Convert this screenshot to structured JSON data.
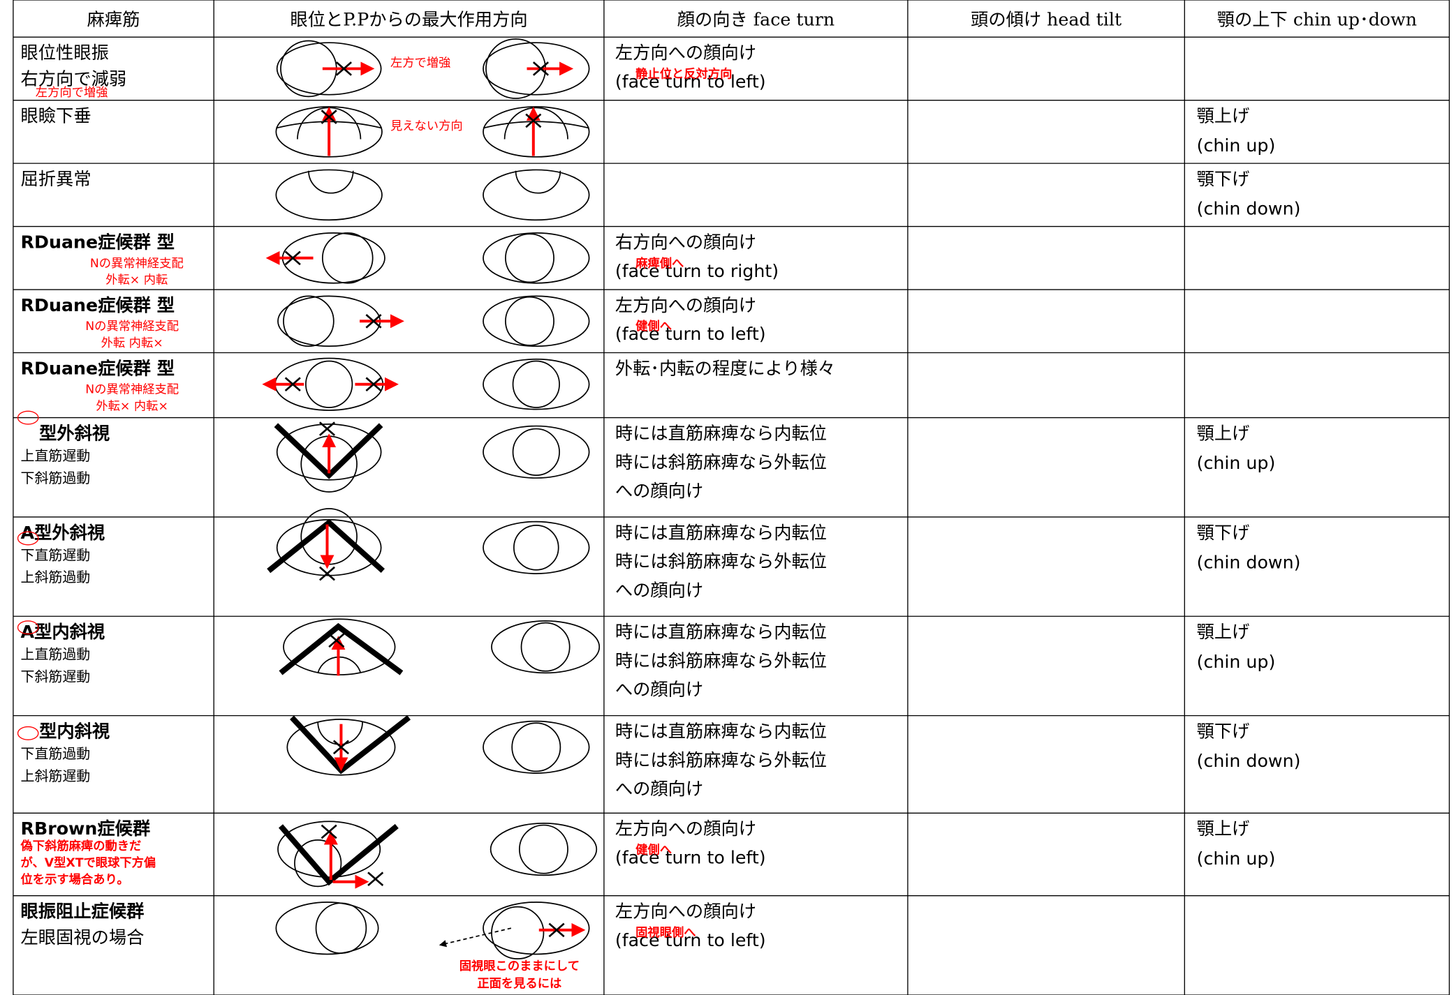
{
  "header": {
    "columns": [
      "麻痺筋",
      "眼位とP.Pからの最大作用方向",
      "顔の向き face turn",
      "頭の傾け head tilt",
      "顎の上下 chin up･down"
    ]
  },
  "rows": [
    {
      "muscle": [
        "眼位性眼振",
        "右方向で減弱"
      ],
      "muscle_notes": [
        "左方向で増強"
      ],
      "diagram_notes": [
        "左方で増強"
      ],
      "face_turn": [
        "左方向への顔向け",
        "(face turn to left)"
      ],
      "face_notes": [
        "静止位と反対方向"
      ]
    },
    {
      "muscle": [
        "眼瞼下垂"
      ],
      "diagram_notes": [
        "見えない方向"
      ],
      "chin": [
        "顎上げ",
        "(chin up)"
      ]
    },
    {
      "muscle": [
        "屈折異常"
      ],
      "chin": [
        "顎下げ",
        "(chin down)"
      ]
    },
    {
      "muscle": [
        "RDuane症候群 型"
      ],
      "muscle_notes": [
        "Nの異常神経支配",
        "外転× 内転"
      ],
      "face_turn": [
        "右方向への顔向け",
        "(face turn to right)"
      ],
      "face_notes": [
        "麻痺側へ"
      ]
    },
    {
      "muscle": [
        "RDuane症候群 型"
      ],
      "muscle_notes": [
        "Nの異常神経支配",
        "外転 内転×"
      ],
      "face_turn": [
        "左方向への顔向け",
        "(face turn to left)"
      ],
      "face_notes": [
        "健側へ"
      ]
    },
    {
      "muscle": [
        "RDuane症候群 型"
      ],
      "muscle_notes": [
        "Nの異常神経支配",
        "外転× 内転×"
      ],
      "face_turn": [
        "外転･内転の程度により様々"
      ]
    },
    {
      "muscle": [
        "型外斜視",
        "上直筋遅動",
        "下斜筋過動"
      ],
      "face_turn": [
        "時には直筋麻痺なら内転位",
        "時には斜筋麻痺なら外転位",
        "への顔向け"
      ],
      "chin": [
        "顎上げ",
        "(chin up)"
      ]
    },
    {
      "muscle": [
        "A型外斜視",
        "下直筋遅動",
        "上斜筋過動"
      ],
      "face_turn": [
        "時には直筋麻痺なら内転位",
        "時には斜筋麻痺なら外転位",
        "への顔向け"
      ],
      "chin": [
        "顎下げ",
        "(chin down)"
      ]
    },
    {
      "muscle": [
        "A型内斜視",
        "上直筋過動",
        "下斜筋遅動"
      ],
      "face_turn": [
        "時には直筋麻痺なら内転位",
        "時には斜筋麻痺なら外転位",
        "への顔向け"
      ],
      "chin": [
        "顎上げ",
        "(chin up)"
      ]
    },
    {
      "muscle": [
        "型内斜視",
        "下直筋過動",
        "上斜筋遅動"
      ],
      "face_turn": [
        "時には直筋麻痺なら内転位",
        "時には斜筋麻痺なら外転位",
        "への顔向け"
      ],
      "chin": [
        "顎下げ",
        "(chin down)"
      ]
    },
    {
      "muscle": [
        "RBrown症候群"
      ],
      "muscle_notes": [
        "偽下斜筋麻痺の動きだ",
        "が、V型XTで眼球下方偏",
        "位を示す場合あり。"
      ],
      "face_turn": [
        "左方向への顔向け",
        "(face turn to left)"
      ],
      "face_notes": [
        "健側へ"
      ],
      "chin": [
        "顎上げ",
        "(chin up)"
      ]
    },
    {
      "muscle": [
        "眼振阻止症候群",
        "左眼固視の場合"
      ],
      "diagram_notes": [
        "固視眼このままにして",
        "正面を見るには"
      ],
      "face_turn": [
        "左方向への顔向け",
        "(face turn to left)"
      ],
      "face_notes": [
        "固視眼側へ"
      ]
    }
  ]
}
